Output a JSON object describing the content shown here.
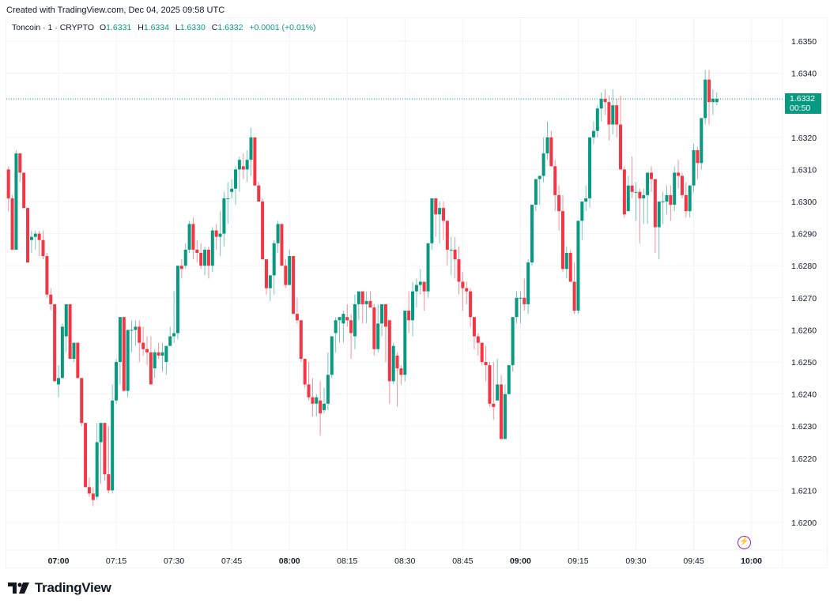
{
  "header": {
    "created_text": "Created with TradingView.com, Dec 04, 2025 09:58 UTC"
  },
  "legend": {
    "symbol": "Toncoin · 1 · CRYPTO",
    "open_label": "O",
    "open": "1.6331",
    "high_label": "H",
    "high": "1.6334",
    "low_label": "L",
    "low": "1.6330",
    "close_label": "C",
    "close": "1.6332",
    "change": "+0.0001 (+0.01%)"
  },
  "last_price": {
    "price": "1.6332",
    "countdown": "00:50"
  },
  "branding": {
    "logo_text": "TradingView"
  },
  "colors": {
    "up": "#089981",
    "down": "#f23645",
    "grid": "#f0f3fa",
    "last_line": "#089981",
    "event_icon": "#9c27b0"
  },
  "chart_data": {
    "type": "candlestick",
    "title": "Toncoin · 1 · CRYPTO",
    "xlabel": "",
    "ylabel": "",
    "ylim": [
      1.6193,
      1.6358
    ],
    "grid": true,
    "y_ticks": [
      "1.6350",
      "1.6340",
      "1.6320",
      "1.6310",
      "1.6300",
      "1.6290",
      "1.6280",
      "1.6270",
      "1.6260",
      "1.6250",
      "1.6240",
      "1.6230",
      "1.6220",
      "1.6210",
      "1.6200"
    ],
    "x_ticks": [
      {
        "label": "07:00",
        "bold": true
      },
      {
        "label": "07:15",
        "bold": false
      },
      {
        "label": "07:30",
        "bold": false
      },
      {
        "label": "07:45",
        "bold": false
      },
      {
        "label": "08:00",
        "bold": true
      },
      {
        "label": "08:15",
        "bold": false
      },
      {
        "label": "08:30",
        "bold": false
      },
      {
        "label": "08:45",
        "bold": false
      },
      {
        "label": "09:00",
        "bold": true
      },
      {
        "label": "09:15",
        "bold": false
      },
      {
        "label": "09:30",
        "bold": false
      },
      {
        "label": "09:45",
        "bold": false
      },
      {
        "label": "10:00",
        "bold": true
      }
    ],
    "start_time": "06:47",
    "interval_minutes": 1,
    "ohlc": [
      [
        1.631,
        1.6311,
        1.6297,
        1.6301
      ],
      [
        1.6301,
        1.6302,
        1.6285,
        1.6285
      ],
      [
        1.6285,
        1.6316,
        1.6285,
        1.6315
      ],
      [
        1.6315,
        1.6315,
        1.6306,
        1.6309
      ],
      [
        1.6309,
        1.6309,
        1.6298,
        1.6298
      ],
      [
        1.6298,
        1.6298,
        1.6281,
        1.6281
      ],
      [
        1.6288,
        1.6291,
        1.6284,
        1.6289
      ],
      [
        1.6289,
        1.6291,
        1.6285,
        1.629
      ],
      [
        1.629,
        1.6291,
        1.6283,
        1.6288
      ],
      [
        1.6288,
        1.6291,
        1.6282,
        1.6283
      ],
      [
        1.6283,
        1.6284,
        1.627,
        1.6271
      ],
      [
        1.6271,
        1.6273,
        1.6266,
        1.6268
      ],
      [
        1.6268,
        1.6268,
        1.6244,
        1.6244
      ],
      [
        1.6243,
        1.6249,
        1.6239,
        1.6245
      ],
      [
        1.6245,
        1.6262,
        1.6245,
        1.6261
      ],
      [
        1.6258,
        1.6268,
        1.6253,
        1.6268
      ],
      [
        1.6268,
        1.6268,
        1.6251,
        1.6251
      ],
      [
        1.6251,
        1.6256,
        1.625,
        1.6256
      ],
      [
        1.6256,
        1.6256,
        1.6245,
        1.6245
      ],
      [
        1.6245,
        1.6245,
        1.623,
        1.6231
      ],
      [
        1.6231,
        1.6231,
        1.6211,
        1.6211
      ],
      [
        1.6211,
        1.6214,
        1.6208,
        1.6209
      ],
      [
        1.6209,
        1.6211,
        1.6205,
        1.6207
      ],
      [
        1.6208,
        1.6231,
        1.6207,
        1.6225
      ],
      [
        1.6225,
        1.6231,
        1.6212,
        1.6231
      ],
      [
        1.6231,
        1.6231,
        1.6213,
        1.6215
      ],
      [
        1.6215,
        1.623,
        1.6209,
        1.621
      ],
      [
        1.621,
        1.6243,
        1.6209,
        1.6238
      ],
      [
        1.6238,
        1.6251,
        1.6237,
        1.625
      ],
      [
        1.625,
        1.6264,
        1.6243,
        1.6264
      ],
      [
        1.6264,
        1.6264,
        1.6241,
        1.6241
      ],
      [
        1.6241,
        1.626,
        1.6239,
        1.626
      ],
      [
        1.626,
        1.6263,
        1.6253,
        1.626
      ],
      [
        1.626,
        1.6263,
        1.6255,
        1.6261
      ],
      [
        1.6261,
        1.6263,
        1.625,
        1.6256
      ],
      [
        1.6256,
        1.6261,
        1.6252,
        1.6254
      ],
      [
        1.6254,
        1.6258,
        1.6249,
        1.6253
      ],
      [
        1.6253,
        1.6258,
        1.6243,
        1.6243
      ],
      [
        1.6248,
        1.6254,
        1.6245,
        1.6253
      ],
      [
        1.6253,
        1.6256,
        1.6251,
        1.6252
      ],
      [
        1.6252,
        1.6256,
        1.6247,
        1.6253
      ],
      [
        1.625,
        1.6255,
        1.6246,
        1.6255
      ],
      [
        1.6255,
        1.6261,
        1.6255,
        1.6258
      ],
      [
        1.6258,
        1.6272,
        1.6256,
        1.6259
      ],
      [
        1.6259,
        1.6279,
        1.6257,
        1.628
      ],
      [
        1.628,
        1.6282,
        1.6276,
        1.6279
      ],
      [
        1.628,
        1.6287,
        1.6279,
        1.6285
      ],
      [
        1.6285,
        1.6294,
        1.6284,
        1.6293
      ],
      [
        1.6293,
        1.6295,
        1.6282,
        1.6285
      ],
      [
        1.6285,
        1.6288,
        1.6281,
        1.6284
      ],
      [
        1.6284,
        1.6287,
        1.6279,
        1.628
      ],
      [
        1.628,
        1.6286,
        1.6277,
        1.6285
      ],
      [
        1.6285,
        1.6286,
        1.6276,
        1.628
      ],
      [
        1.628,
        1.6292,
        1.6278,
        1.6291
      ],
      [
        1.6291,
        1.6293,
        1.6285,
        1.6289
      ],
      [
        1.6289,
        1.6297,
        1.6283,
        1.629
      ],
      [
        1.629,
        1.6303,
        1.6286,
        1.6301
      ],
      [
        1.6301,
        1.6306,
        1.6293,
        1.6301
      ],
      [
        1.6303,
        1.6307,
        1.6301,
        1.6304
      ],
      [
        1.6304,
        1.6311,
        1.6299,
        1.631
      ],
      [
        1.631,
        1.6314,
        1.6303,
        1.6313
      ],
      [
        1.6311,
        1.6315,
        1.6307,
        1.631
      ],
      [
        1.631,
        1.6316,
        1.6306,
        1.6313
      ],
      [
        1.6313,
        1.6323,
        1.6308,
        1.632
      ],
      [
        1.632,
        1.632,
        1.6305,
        1.6305
      ],
      [
        1.6305,
        1.6306,
        1.6302,
        1.63
      ],
      [
        1.63,
        1.6301,
        1.6282,
        1.6282
      ],
      [
        1.6282,
        1.6282,
        1.6271,
        1.6273
      ],
      [
        1.6273,
        1.6277,
        1.6269,
        1.6277
      ],
      [
        1.6277,
        1.6288,
        1.6271,
        1.6287
      ],
      [
        1.6287,
        1.6294,
        1.6284,
        1.6293
      ],
      [
        1.6293,
        1.6293,
        1.628,
        1.628
      ],
      [
        1.628,
        1.6282,
        1.6273,
        1.6274
      ],
      [
        1.6274,
        1.6285,
        1.6274,
        1.6283
      ],
      [
        1.6283,
        1.6283,
        1.6265,
        1.6265
      ],
      [
        1.6265,
        1.627,
        1.6262,
        1.6263
      ],
      [
        1.6263,
        1.6263,
        1.625,
        1.6251
      ],
      [
        1.6251,
        1.6251,
        1.6242,
        1.6243
      ],
      [
        1.6243,
        1.625,
        1.6238,
        1.6239
      ],
      [
        1.6239,
        1.6245,
        1.6233,
        1.6237
      ],
      [
        1.6237,
        1.624,
        1.6233,
        1.6239
      ],
      [
        1.6238,
        1.6244,
        1.6227,
        1.6234
      ],
      [
        1.6235,
        1.6242,
        1.6234,
        1.6237
      ],
      [
        1.6237,
        1.6253,
        1.6235,
        1.6246
      ],
      [
        1.6246,
        1.6251,
        1.6245,
        1.6258
      ],
      [
        1.6259,
        1.6264,
        1.6253,
        1.6263
      ],
      [
        1.6263,
        1.6263,
        1.6256,
        1.6264
      ],
      [
        1.6262,
        1.6266,
        1.6256,
        1.6265
      ],
      [
        1.6264,
        1.6268,
        1.6261,
        1.6263
      ],
      [
        1.6263,
        1.6265,
        1.6251,
        1.6259
      ],
      [
        1.6258,
        1.6271,
        1.6254,
        1.6268
      ],
      [
        1.6268,
        1.6272,
        1.6263,
        1.6272
      ],
      [
        1.6272,
        1.6272,
        1.6262,
        1.6268
      ],
      [
        1.6268,
        1.6272,
        1.6262,
        1.6269
      ],
      [
        1.6269,
        1.6272,
        1.6267,
        1.6267
      ],
      [
        1.6267,
        1.6268,
        1.6252,
        1.6254
      ],
      [
        1.6254,
        1.6268,
        1.6253,
        1.6262
      ],
      [
        1.6262,
        1.6268,
        1.6258,
        1.6268
      ],
      [
        1.6268,
        1.6268,
        1.625,
        1.6261
      ],
      [
        1.6263,
        1.6263,
        1.6237,
        1.6244
      ],
      [
        1.6244,
        1.6256,
        1.6243,
        1.6255
      ],
      [
        1.6252,
        1.6253,
        1.6236,
        1.6248
      ],
      [
        1.6248,
        1.6249,
        1.6243,
        1.6246
      ],
      [
        1.6246,
        1.6266,
        1.6244,
        1.6266
      ],
      [
        1.6266,
        1.6272,
        1.6259,
        1.6263
      ],
      [
        1.6263,
        1.6275,
        1.6258,
        1.6272
      ],
      [
        1.6272,
        1.6276,
        1.6267,
        1.6274
      ],
      [
        1.6274,
        1.6279,
        1.6271,
        1.6275
      ],
      [
        1.6275,
        1.6275,
        1.6266,
        1.6272
      ],
      [
        1.6272,
        1.6286,
        1.627,
        1.6287
      ],
      [
        1.6287,
        1.63,
        1.6285,
        1.6301
      ],
      [
        1.6301,
        1.6301,
        1.6289,
        1.6296
      ],
      [
        1.6296,
        1.63,
        1.6287,
        1.6298
      ],
      [
        1.6298,
        1.63,
        1.6288,
        1.6294
      ],
      [
        1.6294,
        1.6294,
        1.628,
        1.6285
      ],
      [
        1.6285,
        1.6289,
        1.6277,
        1.6285
      ],
      [
        1.6285,
        1.6289,
        1.6276,
        1.6282
      ],
      [
        1.6282,
        1.6286,
        1.6271,
        1.6275
      ],
      [
        1.6275,
        1.6278,
        1.6266,
        1.6273
      ],
      [
        1.6273,
        1.6275,
        1.6268,
        1.6272
      ],
      [
        1.6272,
        1.6273,
        1.6261,
        1.6264
      ],
      [
        1.6264,
        1.6264,
        1.6254,
        1.6258
      ],
      [
        1.6258,
        1.6259,
        1.6252,
        1.6256
      ],
      [
        1.6256,
        1.6256,
        1.6249,
        1.625
      ],
      [
        1.625,
        1.6255,
        1.6244,
        1.6249
      ],
      [
        1.6249,
        1.625,
        1.6236,
        1.6237
      ],
      [
        1.6237,
        1.625,
        1.6232,
        1.6236
      ],
      [
        1.6238,
        1.6251,
        1.6238,
        1.6243
      ],
      [
        1.6243,
        1.6246,
        1.6226,
        1.6226
      ],
      [
        1.6226,
        1.6243,
        1.6226,
        1.624
      ],
      [
        1.624,
        1.6248,
        1.624,
        1.6249
      ],
      [
        1.6249,
        1.6258,
        1.6247,
        1.6264
      ],
      [
        1.6264,
        1.6272,
        1.6262,
        1.627
      ],
      [
        1.627,
        1.6272,
        1.6262,
        1.627
      ],
      [
        1.627,
        1.6276,
        1.6266,
        1.6268
      ],
      [
        1.6268,
        1.6282,
        1.6265,
        1.6281
      ],
      [
        1.6281,
        1.6298,
        1.628,
        1.6299
      ],
      [
        1.6299,
        1.6305,
        1.6297,
        1.6307
      ],
      [
        1.6307,
        1.6308,
        1.6299,
        1.6308
      ],
      [
        1.6308,
        1.632,
        1.6306,
        1.6315
      ],
      [
        1.6315,
        1.6325,
        1.6313,
        1.632
      ],
      [
        1.632,
        1.6322,
        1.6311,
        1.6311
      ],
      [
        1.6311,
        1.6313,
        1.6297,
        1.6302
      ],
      [
        1.6302,
        1.6305,
        1.6291,
        1.6297
      ],
      [
        1.6297,
        1.6302,
        1.6278,
        1.6279
      ],
      [
        1.6279,
        1.6286,
        1.6276,
        1.6284
      ],
      [
        1.6284,
        1.6285,
        1.6278,
        1.6275
      ],
      [
        1.6275,
        1.6281,
        1.6265,
        1.6266
      ],
      [
        1.6266,
        1.6294,
        1.6265,
        1.6294
      ],
      [
        1.6294,
        1.63,
        1.6288,
        1.63
      ],
      [
        1.63,
        1.6305,
        1.6297,
        1.6301
      ],
      [
        1.6301,
        1.632,
        1.6298,
        1.632
      ],
      [
        1.632,
        1.6325,
        1.6318,
        1.6322
      ],
      [
        1.6322,
        1.633,
        1.632,
        1.6329
      ],
      [
        1.6329,
        1.6334,
        1.6325,
        1.6332
      ],
      [
        1.6332,
        1.6335,
        1.6327,
        1.6331
      ],
      [
        1.6331,
        1.6333,
        1.6319,
        1.6324
      ],
      [
        1.6324,
        1.6335,
        1.6321,
        1.633
      ],
      [
        1.633,
        1.6332,
        1.632,
        1.6324
      ],
      [
        1.6324,
        1.6333,
        1.6314,
        1.631
      ],
      [
        1.631,
        1.6311,
        1.6295,
        1.6296
      ],
      [
        1.6297,
        1.6308,
        1.6297,
        1.6305
      ],
      [
        1.6305,
        1.6314,
        1.6301,
        1.6303
      ],
      [
        1.6303,
        1.6306,
        1.6294,
        1.6303
      ],
      [
        1.6303,
        1.6304,
        1.6287,
        1.6301
      ],
      [
        1.6301,
        1.6304,
        1.6293,
        1.6302
      ],
      [
        1.6302,
        1.6306,
        1.6293,
        1.6309
      ],
      [
        1.6309,
        1.6311,
        1.6303,
        1.6307
      ],
      [
        1.6307,
        1.6307,
        1.6284,
        1.6292
      ],
      [
        1.6292,
        1.63,
        1.6282,
        1.63
      ],
      [
        1.63,
        1.6303,
        1.6293,
        1.63
      ],
      [
        1.63,
        1.6305,
        1.6296,
        1.6302
      ],
      [
        1.6302,
        1.6305,
        1.6294,
        1.6299
      ],
      [
        1.6299,
        1.6311,
        1.6297,
        1.6309
      ],
      [
        1.6309,
        1.6313,
        1.6304,
        1.6308
      ],
      [
        1.6308,
        1.6309,
        1.6301,
        1.6302
      ],
      [
        1.6302,
        1.6306,
        1.6295,
        1.6297
      ],
      [
        1.6297,
        1.6305,
        1.6295,
        1.6305
      ],
      [
        1.6305,
        1.6318,
        1.6303,
        1.6316
      ],
      [
        1.6316,
        1.6317,
        1.6307,
        1.6312
      ],
      [
        1.6312,
        1.632,
        1.631,
        1.6326
      ],
      [
        1.6326,
        1.6341,
        1.6324,
        1.6338
      ],
      [
        1.6338,
        1.6341,
        1.6324,
        1.6331
      ],
      [
        1.6331,
        1.6335,
        1.6327,
        1.6332
      ],
      [
        1.6331,
        1.6334,
        1.633,
        1.6332
      ]
    ],
    "last_price": 1.6332
  }
}
